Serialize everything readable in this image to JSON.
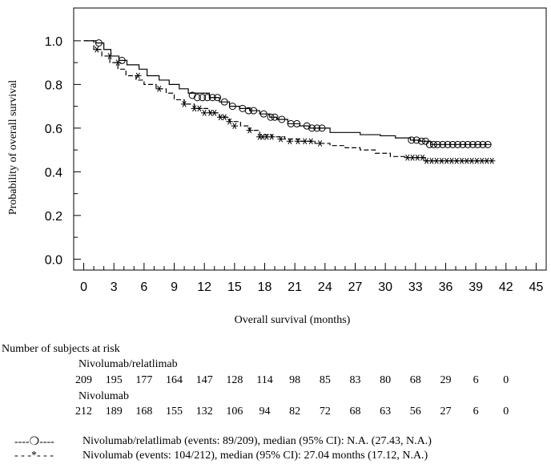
{
  "chart_data": {
    "type": "line",
    "title": "",
    "xlabel": "Overall survival (months)",
    "ylabel": "Probability of overall survival",
    "xlim": [
      -1,
      46
    ],
    "ylim": [
      -0.05,
      1.15
    ],
    "x_ticks": [
      "0",
      "3",
      "6",
      "9",
      "12",
      "15",
      "18",
      "21",
      "24",
      "27",
      "30",
      "33",
      "36",
      "39",
      "42",
      "45"
    ],
    "y_ticks": [
      "0.0",
      "0.2",
      "0.4",
      "0.6",
      "0.8",
      "1.0"
    ],
    "series": [
      {
        "name": "Nivolumab/relatlimab",
        "line_style": "solid",
        "censor_marker": "circle",
        "x": [
          0,
          1.2,
          2.0,
          2.7,
          3.5,
          4.3,
          5.5,
          6.3,
          7.5,
          8.5,
          9.5,
          10.4,
          12.5,
          13.5,
          14.5,
          15.5,
          16.5,
          17.5,
          18.5,
          19.2,
          20.3,
          21.5,
          22.5,
          24.5,
          27.5,
          29.5,
          31.0,
          32.5,
          33.5,
          34.5,
          40.5
        ],
        "y": [
          1.0,
          0.99,
          0.96,
          0.93,
          0.91,
          0.89,
          0.87,
          0.84,
          0.82,
          0.8,
          0.78,
          0.76,
          0.74,
          0.72,
          0.7,
          0.69,
          0.68,
          0.665,
          0.65,
          0.64,
          0.62,
          0.61,
          0.6,
          0.58,
          0.57,
          0.565,
          0.555,
          0.545,
          0.54,
          0.525,
          0.525
        ],
        "censor_x": [
          1.5,
          3.8,
          10.8,
          11.3,
          11.8,
          12.3,
          12.8,
          13.3,
          14.0,
          14.8,
          15.8,
          16.4,
          16.9,
          17.9,
          18.6,
          19.0,
          19.7,
          20.6,
          21.2,
          22.2,
          22.7,
          23.2,
          23.7,
          32.6,
          33.1,
          33.6,
          34.0,
          34.4,
          34.8,
          35.2,
          35.7,
          36.2,
          36.7,
          37.2,
          37.7,
          38.2,
          38.7,
          39.2,
          39.7,
          40.2
        ],
        "censor_y": [
          0.99,
          0.91,
          0.75,
          0.74,
          0.74,
          0.74,
          0.74,
          0.74,
          0.72,
          0.7,
          0.69,
          0.68,
          0.68,
          0.665,
          0.65,
          0.65,
          0.64,
          0.62,
          0.62,
          0.61,
          0.6,
          0.6,
          0.6,
          0.545,
          0.545,
          0.54,
          0.54,
          0.525,
          0.525,
          0.525,
          0.525,
          0.525,
          0.525,
          0.525,
          0.525,
          0.525,
          0.525,
          0.525,
          0.525,
          0.525
        ]
      },
      {
        "name": "Nivolumab",
        "line_style": "dashed",
        "censor_marker": "asterisk",
        "x": [
          0,
          1.0,
          1.8,
          2.6,
          3.4,
          4.2,
          5.2,
          6.0,
          7.2,
          8.2,
          9.0,
          10.0,
          11.0,
          12.5,
          13.5,
          14.5,
          15.6,
          16.5,
          17.5,
          18.7,
          20.0,
          21.5,
          23.0,
          24.5,
          26.0,
          27.5,
          29.0,
          30.5,
          32.0,
          34.0,
          40.5
        ],
        "y": [
          1.0,
          0.96,
          0.93,
          0.9,
          0.87,
          0.84,
          0.82,
          0.8,
          0.78,
          0.76,
          0.73,
          0.71,
          0.69,
          0.67,
          0.65,
          0.63,
          0.61,
          0.59,
          0.57,
          0.56,
          0.55,
          0.54,
          0.53,
          0.52,
          0.51,
          0.5,
          0.485,
          0.47,
          0.465,
          0.45,
          0.45
        ],
        "censor_x": [
          1.3,
          2.6,
          3.4,
          5.4,
          7.5,
          10.0,
          11.0,
          11.5,
          12.0,
          12.6,
          13.0,
          13.6,
          14.0,
          14.5,
          15.0,
          16.5,
          17.5,
          17.8,
          18.2,
          18.7,
          19.6,
          20.5,
          21.3,
          22.0,
          22.6,
          23.5,
          32.2,
          32.7,
          33.2,
          33.7,
          34.1,
          34.6,
          35.1,
          35.6,
          36.1,
          36.6,
          37.1,
          37.6,
          38.1,
          38.6,
          39.1,
          39.6,
          40.1,
          40.6
        ],
        "censor_y": [
          0.96,
          0.93,
          0.9,
          0.84,
          0.78,
          0.71,
          0.69,
          0.69,
          0.67,
          0.67,
          0.67,
          0.65,
          0.65,
          0.63,
          0.61,
          0.59,
          0.56,
          0.56,
          0.56,
          0.56,
          0.55,
          0.54,
          0.54,
          0.54,
          0.54,
          0.53,
          0.465,
          0.465,
          0.465,
          0.465,
          0.45,
          0.45,
          0.45,
          0.45,
          0.45,
          0.45,
          0.45,
          0.45,
          0.45,
          0.45,
          0.45,
          0.45,
          0.45,
          0.45
        ]
      }
    ]
  },
  "risk_table": {
    "title": "Number of subjects at risk",
    "times": [
      0,
      3,
      6,
      9,
      12,
      15,
      18,
      21,
      24,
      27,
      30,
      33,
      36,
      39,
      42
    ],
    "groups": [
      {
        "name": "Nivolumab/relatlimab",
        "counts": [
          "209",
          "195",
          "177",
          "164",
          "147",
          "128",
          "114",
          "98",
          "85",
          "83",
          "80",
          "68",
          "29",
          "6",
          "0"
        ]
      },
      {
        "name": "Nivolumab",
        "counts": [
          "212",
          "189",
          "168",
          "155",
          "132",
          "106",
          "94",
          "82",
          "72",
          "68",
          "63",
          "56",
          "27",
          "6",
          "0"
        ]
      }
    ]
  },
  "legend": [
    {
      "symbol": "----❍----",
      "text": "Nivolumab/relatlimab (events: 89/209), median (95% CI): N.A. (27.43, N.A.)"
    },
    {
      "symbol": "- - -*- - -",
      "text": "Nivolumab (events: 104/212), median (95% CI): 27.04 months (17.12, N.A.)"
    }
  ]
}
